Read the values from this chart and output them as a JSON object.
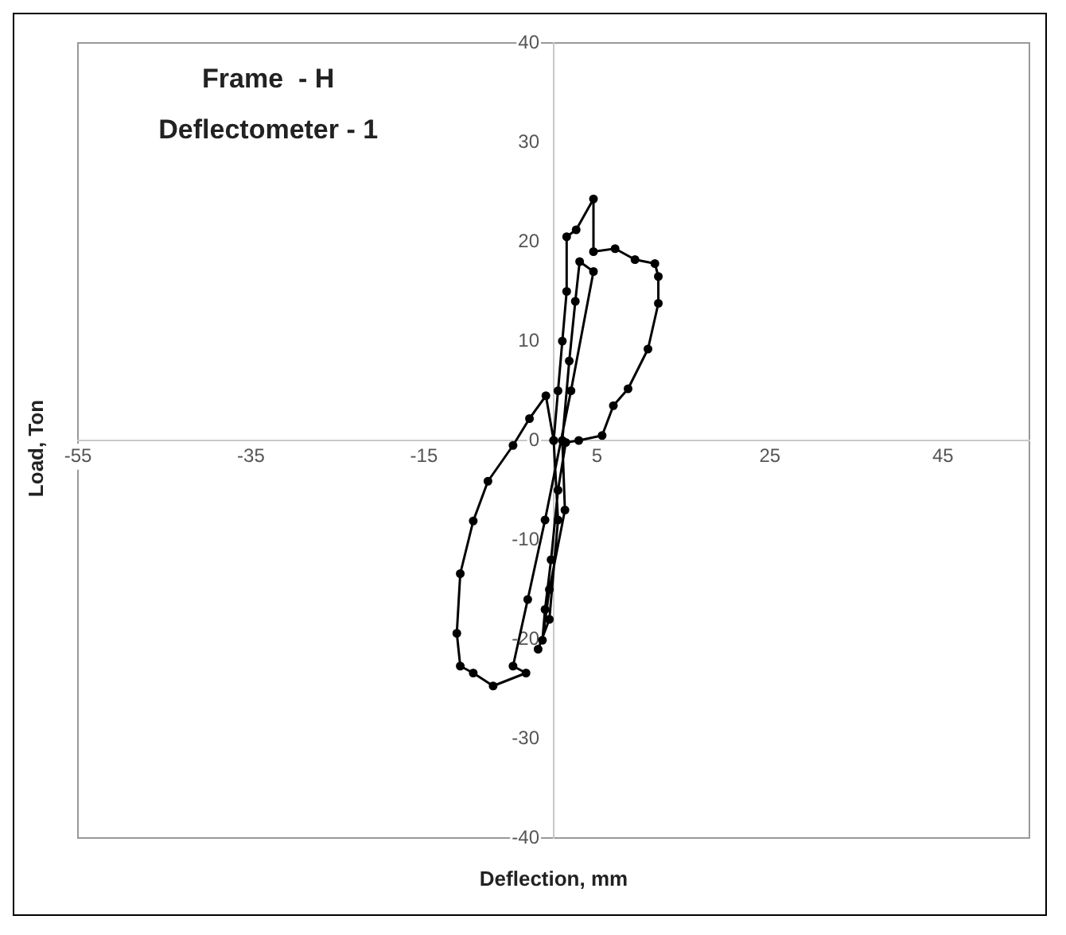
{
  "chart_data": {
    "type": "line",
    "title": "Frame  - H",
    "subtitle": "Deflectometer - 1",
    "xlabel": "Deflection, mm",
    "ylabel": "Load, Ton",
    "xlim": [
      -55,
      55
    ],
    "ylim": [
      -40,
      40
    ],
    "xticks": [
      -55,
      -35,
      -15,
      5,
      25,
      45
    ],
    "yticks": [
      -40,
      -30,
      -20,
      -10,
      0,
      10,
      20,
      30,
      40
    ],
    "marker": "circle",
    "line_style": "solid",
    "series": [
      {
        "color": "#000000",
        "x": [
          0,
          0.5,
          1,
          1.5,
          1.5,
          2.6,
          4.6,
          4.6,
          7.1,
          9.4,
          11.7,
          12.1,
          12.1,
          10.9,
          8.6,
          6.9,
          5.6,
          2.9,
          1.4,
          0.5,
          -0.3,
          -1,
          -1.3,
          -0.5,
          1.3,
          1,
          1.8,
          2.5,
          3,
          4.6,
          2,
          -1,
          -3,
          -4.7,
          -3.2,
          -7,
          -9.3,
          -10.8,
          -11.2,
          -10.8,
          -9.3,
          -7.6,
          -4.7,
          -2.8,
          -0.9,
          0,
          0.5,
          -0.5,
          -1.8
        ],
        "values": [
          0,
          5,
          10,
          15,
          20.5,
          21.2,
          24.3,
          19,
          19.3,
          18.2,
          17.8,
          16.5,
          13.8,
          9.2,
          5.2,
          3.5,
          0.5,
          0,
          -0.2,
          -5,
          -12,
          -17,
          -20.1,
          -15,
          -7,
          0,
          8,
          14,
          18,
          17,
          5,
          -8,
          -16,
          -22.7,
          -23.4,
          -24.7,
          -23.4,
          -22.7,
          -19.4,
          -13.4,
          -8.1,
          -4.1,
          -0.5,
          2.2,
          4.5,
          0,
          -8,
          -18,
          -21
        ]
      }
    ]
  }
}
